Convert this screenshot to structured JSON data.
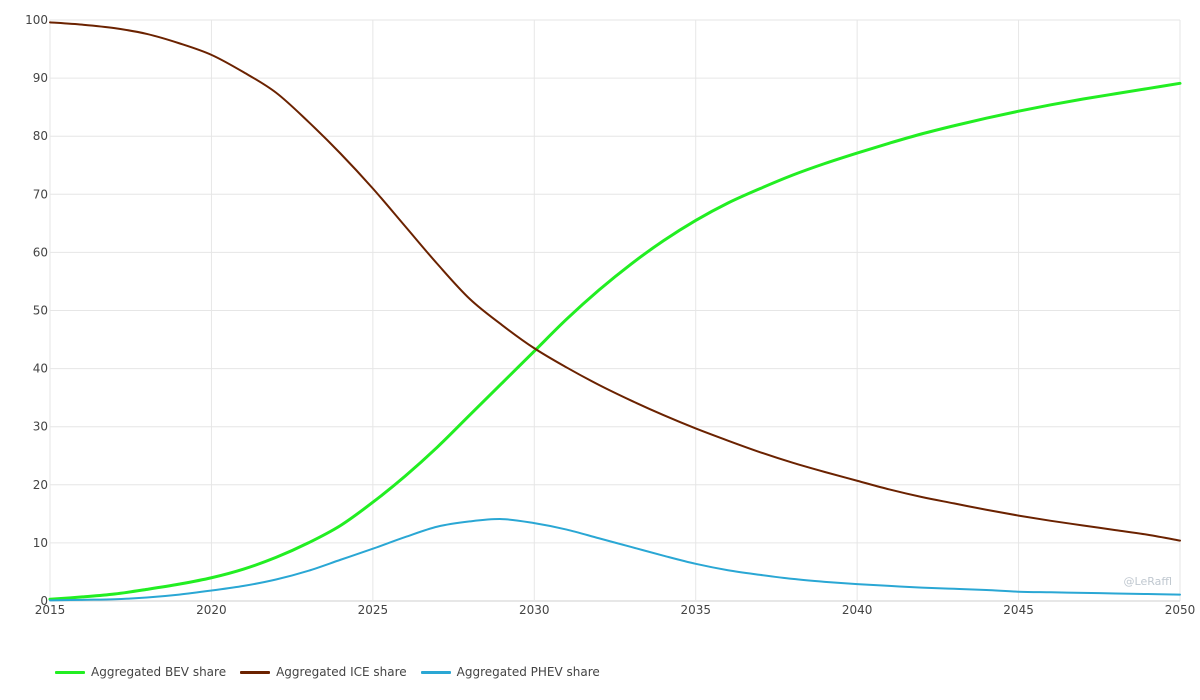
{
  "chart_data": {
    "type": "line",
    "title": "",
    "xlabel": "",
    "ylabel": "",
    "xlim": [
      2015,
      2050
    ],
    "ylim": [
      0,
      100
    ],
    "x_ticks": [
      2015,
      2020,
      2025,
      2030,
      2035,
      2040,
      2045,
      2050
    ],
    "y_ticks": [
      0,
      10,
      20,
      30,
      40,
      50,
      60,
      70,
      80,
      90,
      100
    ],
    "grid": true,
    "legend_position": "bottom-left",
    "watermark": "@LeRaffl",
    "x": [
      2015,
      2016,
      2017,
      2018,
      2019,
      2020,
      2021,
      2022,
      2023,
      2024,
      2025,
      2026,
      2027,
      2028,
      2029,
      2030,
      2031,
      2032,
      2033,
      2034,
      2035,
      2036,
      2037,
      2038,
      2039,
      2040,
      2041,
      2042,
      2043,
      2044,
      2045,
      2046,
      2047,
      2048,
      2049,
      2050
    ],
    "series": [
      {
        "name": "Aggregated BEV share",
        "color": "#22ee22",
        "width": 3,
        "values": [
          0.3,
          0.7,
          1.2,
          2.0,
          2.9,
          4.0,
          5.5,
          7.5,
          10.0,
          13.0,
          17.0,
          21.5,
          26.5,
          32.0,
          37.5,
          43.0,
          48.5,
          53.5,
          58.0,
          62.0,
          65.5,
          68.5,
          71.0,
          73.3,
          75.3,
          77.1,
          78.8,
          80.4,
          81.8,
          83.1,
          84.3,
          85.4,
          86.4,
          87.3,
          88.2,
          89.1
        ]
      },
      {
        "name": "Aggregated ICE share",
        "color": "#6b2200",
        "width": 2,
        "values": [
          99.6,
          99.2,
          98.6,
          97.6,
          96.0,
          94.0,
          91.0,
          87.5,
          82.5,
          77.0,
          71.0,
          64.5,
          58.0,
          52.0,
          47.5,
          43.5,
          40.2,
          37.2,
          34.5,
          32.0,
          29.7,
          27.6,
          25.6,
          23.8,
          22.2,
          20.7,
          19.2,
          17.9,
          16.8,
          15.7,
          14.7,
          13.8,
          13.0,
          12.2,
          11.4,
          10.4
        ]
      },
      {
        "name": "Aggregated PHEV share",
        "color": "#2aa7d4",
        "width": 2,
        "values": [
          0.1,
          0.2,
          0.3,
          0.6,
          1.1,
          1.8,
          2.6,
          3.7,
          5.2,
          7.1,
          9.0,
          11.0,
          12.8,
          13.7,
          14.1,
          13.4,
          12.3,
          10.8,
          9.3,
          7.8,
          6.4,
          5.3,
          4.5,
          3.8,
          3.3,
          2.9,
          2.6,
          2.3,
          2.1,
          1.9,
          1.6,
          1.5,
          1.4,
          1.3,
          1.2,
          1.1
        ]
      }
    ]
  }
}
